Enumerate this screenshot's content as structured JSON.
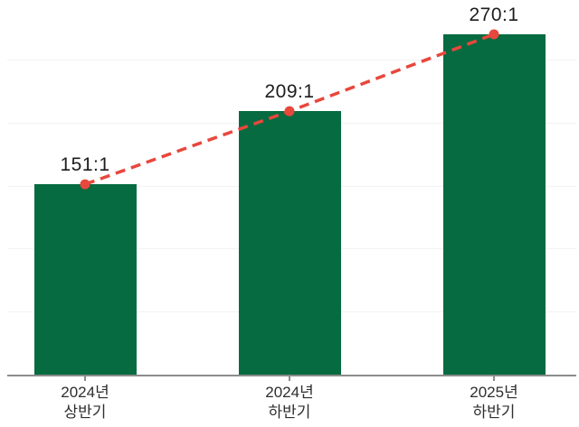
{
  "chart_data": {
    "type": "bar",
    "title": "",
    "categories": [
      {
        "line1": "2024년",
        "line2": "상반기"
      },
      {
        "line1": "2024년",
        "line2": "하반기"
      },
      {
        "line1": "2025년",
        "line2": "하반기"
      }
    ],
    "series": [
      {
        "name": "competition-ratio-bars",
        "type": "bar",
        "values": [
          151,
          209,
          270
        ]
      },
      {
        "name": "competition-ratio-trend",
        "type": "line",
        "values": [
          151,
          209,
          270
        ]
      }
    ],
    "data_labels": [
      "151:1",
      "209:1",
      "270:1"
    ],
    "xlabel": "",
    "ylabel": "",
    "ylim": [
      0,
      297
    ],
    "grid": "faint-horizontal",
    "gridline_step": 50,
    "legend_position": "none"
  },
  "colors": {
    "background": "#ffffff",
    "bar": "#066b40",
    "trend_line": "#e8473c",
    "marker": "#e8473c",
    "axis": "#8c8c8c",
    "gridline": "#f3f3f3",
    "value_label": "#1c1c1c",
    "category_label": "#2e2e2e"
  }
}
